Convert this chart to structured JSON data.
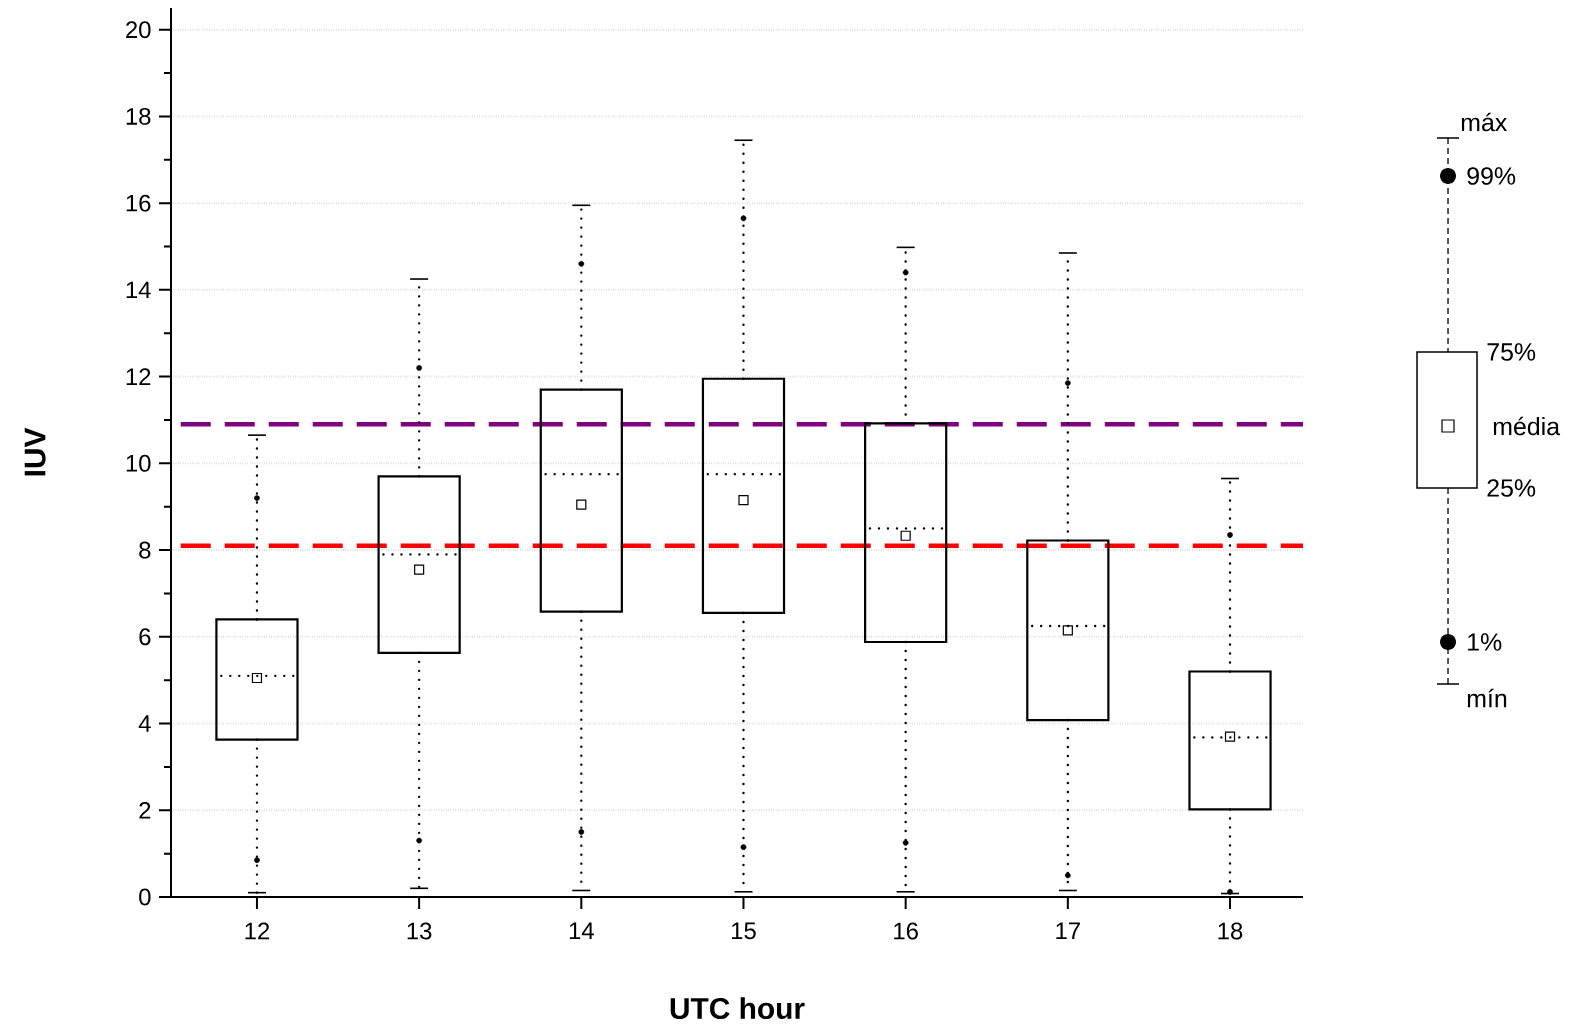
{
  "chart_data": {
    "type": "box",
    "xlabel": "UTC hour",
    "ylabel": "IUV",
    "categories": [
      "12",
      "13",
      "14",
      "15",
      "16",
      "17",
      "18"
    ],
    "boxes": [
      {
        "low": 0.1,
        "q1": 3.63,
        "median": 5.1,
        "q3": 6.4,
        "high": 10.65,
        "mean": 5.05,
        "outliers": [
          0.85,
          9.2
        ]
      },
      {
        "low": 0.2,
        "q1": 5.63,
        "median": 7.9,
        "q3": 9.7,
        "high": 14.25,
        "mean": 7.55,
        "outliers": [
          1.3,
          12.2
        ]
      },
      {
        "low": 0.15,
        "q1": 6.58,
        "median": 9.75,
        "q3": 11.7,
        "high": 15.95,
        "mean": 9.05,
        "outliers": [
          1.5,
          14.6
        ]
      },
      {
        "low": 0.12,
        "q1": 6.55,
        "median": 9.75,
        "q3": 11.95,
        "high": 17.45,
        "mean": 9.15,
        "outliers": [
          1.15,
          15.65
        ]
      },
      {
        "low": 0.12,
        "q1": 5.88,
        "median": 8.5,
        "q3": 10.92,
        "high": 14.98,
        "mean": 8.33,
        "outliers": [
          1.25,
          14.4
        ]
      },
      {
        "low": 0.15,
        "q1": 4.08,
        "median": 6.25,
        "q3": 8.22,
        "high": 14.85,
        "mean": 6.15,
        "outliers": [
          0.5,
          11.85
        ]
      },
      {
        "low": 0.08,
        "q1": 2.02,
        "median": 3.68,
        "q3": 5.2,
        "high": 9.65,
        "mean": 3.7,
        "outliers": [
          0.12,
          8.35
        ]
      }
    ],
    "color": "#000000",
    "ylim": [
      0,
      20.5
    ],
    "yticks": [
      0,
      2,
      4,
      6,
      8,
      10,
      12,
      14,
      16,
      18,
      20
    ],
    "grid": "y",
    "ref_lines": [
      {
        "axis": "y",
        "value": 10.9,
        "color": "#800080",
        "line_style": "dashed"
      },
      {
        "axis": "y",
        "value": 8.1,
        "color": "#ff0000",
        "line_style": "dashed"
      }
    ],
    "annotations": [
      "máx",
      "99%",
      "75%",
      "média",
      "25%",
      "1%",
      "mín"
    ]
  }
}
